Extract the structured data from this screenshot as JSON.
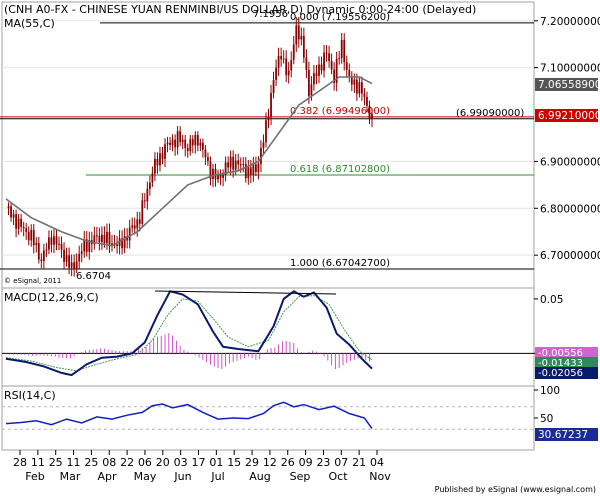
{
  "title": "(CNH A0-FX - CHINESE YUAN RENMINBI/US DOLLAR,D) Dynamic 0:00-24:00 (Delayed)",
  "ma_label": "MA(55,C)",
  "watermark": "© eSignal, 2011",
  "footer": "Published by eSignal (www.esignal.com)",
  "colors": {
    "price": "#8b0000",
    "ma": "#707070",
    "fib_black": "#000000",
    "fib_red": "#cc0000",
    "fib_green": "#2e8b2e",
    "macd": "#0a1a6b",
    "signal": "#4a9a4a",
    "hist": "#d040c0",
    "rsi": "#1020c0",
    "price_tag": "#cc0000",
    "ma_tag": "#555555",
    "rsi_tag": "#1a2a9a"
  },
  "chart_data": [
    {
      "type": "candlestick",
      "title": "(CNH A0-FX - CHINESE YUAN RENMINBI/US DOLLAR,D) Dynamic 0:00-24:00 (Delayed)",
      "x_ticks": [
        "28",
        "11",
        "25",
        "11",
        "25",
        "08",
        "22",
        "06",
        "20",
        "03",
        "17",
        "01",
        "15",
        "29",
        "12",
        "26",
        "09",
        "23",
        "07",
        "21",
        "04"
      ],
      "months": [
        "Feb",
        "Mar",
        "Apr",
        "May",
        "Jun",
        "Jul",
        "Aug",
        "Sep",
        "Oct",
        "Nov"
      ],
      "ylim": [
        6.63,
        7.24
      ],
      "y_ticks": [
        6.7,
        6.8,
        6.9,
        7.1,
        7.2
      ],
      "y_tick_labels": [
        "6.70000000",
        "6.80000000",
        "6.90000000",
        "7.10000000",
        "7.20000000"
      ],
      "path_nodes": [
        {
          "t": 0,
          "v": 6.8
        },
        {
          "t": 6,
          "v": 6.76
        },
        {
          "t": 10,
          "v": 6.74
        },
        {
          "t": 14,
          "v": 6.69
        },
        {
          "t": 18,
          "v": 6.74
        },
        {
          "t": 22,
          "v": 6.71
        },
        {
          "t": 26,
          "v": 6.67
        },
        {
          "t": 31,
          "v": 6.72
        },
        {
          "t": 37,
          "v": 6.74
        },
        {
          "t": 41,
          "v": 6.73
        },
        {
          "t": 45,
          "v": 6.72
        },
        {
          "t": 49,
          "v": 6.75
        },
        {
          "t": 53,
          "v": 6.78
        },
        {
          "t": 58,
          "v": 6.88
        },
        {
          "t": 63,
          "v": 6.93
        },
        {
          "t": 68,
          "v": 6.95
        },
        {
          "t": 72,
          "v": 6.93
        },
        {
          "t": 76,
          "v": 6.95
        },
        {
          "t": 81,
          "v": 6.88
        },
        {
          "t": 84,
          "v": 6.86
        },
        {
          "t": 87,
          "v": 6.89
        },
        {
          "t": 91,
          "v": 6.9
        },
        {
          "t": 95,
          "v": 6.88
        },
        {
          "t": 99,
          "v": 6.88
        },
        {
          "t": 103,
          "v": 6.97
        },
        {
          "t": 106,
          "v": 7.08
        },
        {
          "t": 109,
          "v": 7.13
        },
        {
          "t": 112,
          "v": 7.08
        },
        {
          "t": 115,
          "v": 7.19
        },
        {
          "t": 118,
          "v": 7.13
        },
        {
          "t": 120,
          "v": 7.05
        },
        {
          "t": 123,
          "v": 7.09
        },
        {
          "t": 127,
          "v": 7.13
        },
        {
          "t": 130,
          "v": 7.08
        },
        {
          "t": 133,
          "v": 7.15
        },
        {
          "t": 136,
          "v": 7.07
        },
        {
          "t": 140,
          "v": 7.06
        },
        {
          "t": 145,
          "v": 6.99
        }
      ],
      "ma_nodes": [
        {
          "t": 0,
          "v": 6.82
        },
        {
          "t": 10,
          "v": 6.78
        },
        {
          "t": 22,
          "v": 6.75
        },
        {
          "t": 32,
          "v": 6.73
        },
        {
          "t": 42,
          "v": 6.72
        },
        {
          "t": 52,
          "v": 6.75
        },
        {
          "t": 62,
          "v": 6.8
        },
        {
          "t": 72,
          "v": 6.85
        },
        {
          "t": 82,
          "v": 6.87
        },
        {
          "t": 92,
          "v": 6.88
        },
        {
          "t": 100,
          "v": 6.9
        },
        {
          "t": 108,
          "v": 6.96
        },
        {
          "t": 116,
          "v": 7.02
        },
        {
          "t": 124,
          "v": 7.05
        },
        {
          "t": 132,
          "v": 7.08
        },
        {
          "t": 140,
          "v": 7.08
        },
        {
          "t": 145,
          "v": 7.066
        }
      ],
      "fib_levels": [
        {
          "ratio": "0.000",
          "label": "0.000 (7.19556200)",
          "value": 7.195562
        },
        {
          "ratio": "0.382",
          "label": "0.382 (6.99496000)",
          "value": 6.99496
        },
        {
          "ratio": "0.618",
          "label": "0.618 (6.87102800)",
          "value": 6.871028
        },
        {
          "ratio": "1.000",
          "label": "1.000 (6.67042700)",
          "value": 6.670427
        }
      ],
      "horizontal_line": {
        "label": "(6.99090000)",
        "value": 6.9909
      },
      "annotations": {
        "high": "7.1956",
        "low": "6.6704"
      },
      "last_price": "6.99210000",
      "ma_value": "7.06558900",
      "legend": [
        "MA(55,C)"
      ]
    },
    {
      "type": "line",
      "title": "MACD(12,26,9,C)",
      "ylim": [
        -0.03,
        0.06
      ],
      "y_ticks": [
        0.05,
        0
      ],
      "y_tick_labels": [
        "0.05",
        "0"
      ],
      "macd_nodes": [
        {
          "t": 0,
          "v": -0.005
        },
        {
          "t": 8,
          "v": -0.008
        },
        {
          "t": 15,
          "v": -0.012
        },
        {
          "t": 22,
          "v": -0.018
        },
        {
          "t": 26,
          "v": -0.02
        },
        {
          "t": 32,
          "v": -0.01
        },
        {
          "t": 38,
          "v": -0.004
        },
        {
          "t": 44,
          "v": -0.003
        },
        {
          "t": 50,
          "v": 0.0
        },
        {
          "t": 55,
          "v": 0.01
        },
        {
          "t": 60,
          "v": 0.035
        },
        {
          "t": 65,
          "v": 0.057
        },
        {
          "t": 70,
          "v": 0.054
        },
        {
          "t": 76,
          "v": 0.045
        },
        {
          "t": 82,
          "v": 0.02
        },
        {
          "t": 86,
          "v": 0.006
        },
        {
          "t": 92,
          "v": 0.004
        },
        {
          "t": 100,
          "v": 0.002
        },
        {
          "t": 106,
          "v": 0.025
        },
        {
          "t": 110,
          "v": 0.05
        },
        {
          "t": 114,
          "v": 0.057
        },
        {
          "t": 118,
          "v": 0.052
        },
        {
          "t": 122,
          "v": 0.056
        },
        {
          "t": 127,
          "v": 0.042
        },
        {
          "t": 131,
          "v": 0.018
        },
        {
          "t": 136,
          "v": 0.008
        },
        {
          "t": 141,
          "v": -0.005
        },
        {
          "t": 145,
          "v": -0.014
        }
      ],
      "signal_nodes": [
        {
          "t": 0,
          "v": -0.004
        },
        {
          "t": 10,
          "v": -0.007
        },
        {
          "t": 20,
          "v": -0.013
        },
        {
          "t": 28,
          "v": -0.016
        },
        {
          "t": 36,
          "v": -0.01
        },
        {
          "t": 44,
          "v": -0.005
        },
        {
          "t": 52,
          "v": -0.001
        },
        {
          "t": 58,
          "v": 0.012
        },
        {
          "t": 64,
          "v": 0.035
        },
        {
          "t": 70,
          "v": 0.05
        },
        {
          "t": 76,
          "v": 0.048
        },
        {
          "t": 82,
          "v": 0.032
        },
        {
          "t": 88,
          "v": 0.015
        },
        {
          "t": 96,
          "v": 0.006
        },
        {
          "t": 104,
          "v": 0.012
        },
        {
          "t": 110,
          "v": 0.038
        },
        {
          "t": 116,
          "v": 0.052
        },
        {
          "t": 122,
          "v": 0.053
        },
        {
          "t": 128,
          "v": 0.045
        },
        {
          "t": 134,
          "v": 0.022
        },
        {
          "t": 140,
          "v": 0.002
        },
        {
          "t": 145,
          "v": -0.006
        }
      ],
      "value_labels": [
        "-0.00556",
        "-0.01433",
        "-0.02056"
      ],
      "peak_line": true
    },
    {
      "type": "line",
      "title": "RSI(14,C)",
      "ylim": [
        0,
        100
      ],
      "y_ticks": [
        100,
        50
      ],
      "y_tick_labels": [
        "100",
        "50"
      ],
      "guide_levels": [
        70,
        30
      ],
      "rsi_nodes": [
        {
          "t": 0,
          "v": 40
        },
        {
          "t": 6,
          "v": 42
        },
        {
          "t": 12,
          "v": 45
        },
        {
          "t": 18,
          "v": 38
        },
        {
          "t": 24,
          "v": 48
        },
        {
          "t": 30,
          "v": 41
        },
        {
          "t": 36,
          "v": 52
        },
        {
          "t": 42,
          "v": 48
        },
        {
          "t": 48,
          "v": 55
        },
        {
          "t": 54,
          "v": 60
        },
        {
          "t": 58,
          "v": 72
        },
        {
          "t": 62,
          "v": 75
        },
        {
          "t": 66,
          "v": 68
        },
        {
          "t": 72,
          "v": 74
        },
        {
          "t": 78,
          "v": 60
        },
        {
          "t": 84,
          "v": 48
        },
        {
          "t": 90,
          "v": 50
        },
        {
          "t": 96,
          "v": 49
        },
        {
          "t": 102,
          "v": 58
        },
        {
          "t": 106,
          "v": 72
        },
        {
          "t": 110,
          "v": 78
        },
        {
          "t": 114,
          "v": 70
        },
        {
          "t": 118,
          "v": 74
        },
        {
          "t": 124,
          "v": 65
        },
        {
          "t": 130,
          "v": 71
        },
        {
          "t": 136,
          "v": 58
        },
        {
          "t": 142,
          "v": 50
        },
        {
          "t": 145,
          "v": 31
        }
      ],
      "value_label": "30.67237"
    }
  ]
}
